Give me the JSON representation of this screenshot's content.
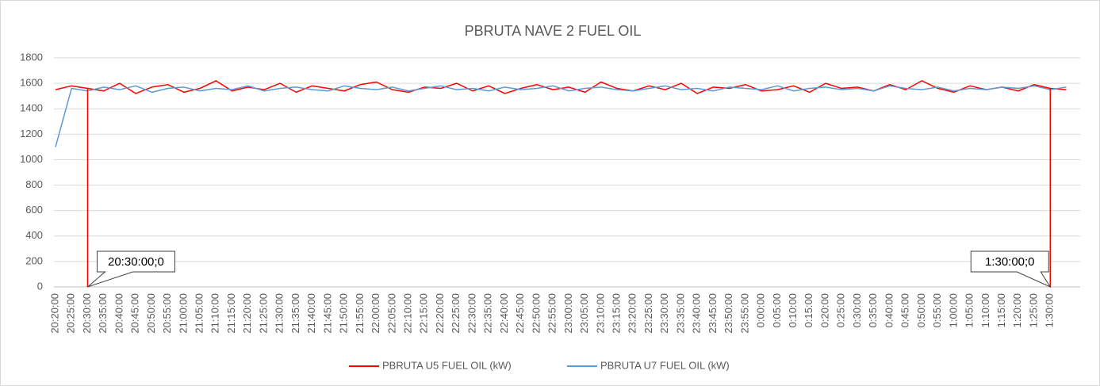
{
  "chart_data": {
    "type": "line",
    "title": "PBRUTA NAVE 2 FUEL OIL",
    "categories": [
      "20:20:00",
      "20:25:00",
      "20:30:00",
      "20:35:00",
      "20:40:00",
      "20:45:00",
      "20:50:00",
      "20:55:00",
      "21:00:00",
      "21:05:00",
      "21:10:00",
      "21:15:00",
      "21:20:00",
      "21:25:00",
      "21:30:00",
      "21:35:00",
      "21:40:00",
      "21:45:00",
      "21:50:00",
      "21:55:00",
      "22:00:00",
      "22:05:00",
      "22:10:00",
      "22:15:00",
      "22:20:00",
      "22:25:00",
      "22:30:00",
      "22:35:00",
      "22:40:00",
      "22:45:00",
      "22:50:00",
      "22:55:00",
      "23:00:00",
      "23:05:00",
      "23:10:00",
      "23:15:00",
      "23:20:00",
      "23:25:00",
      "23:30:00",
      "23:35:00",
      "23:40:00",
      "23:45:00",
      "23:50:00",
      "23:55:00",
      "0:00:00",
      "0:05:00",
      "0:10:00",
      "0:15:00",
      "0:20:00",
      "0:25:00",
      "0:30:00",
      "0:35:00",
      "0:40:00",
      "0:45:00",
      "0:50:00",
      "0:55:00",
      "1:00:00",
      "1:05:00",
      "1:10:00",
      "1:15:00",
      "1:20:00",
      "1:25:00",
      "1:30:00",
      null
    ],
    "series": [
      {
        "name": "PBRUTA U5 FUEL OIL (kW)",
        "color": "#ff0000",
        "values": [
          1550,
          1580,
          1560,
          1540,
          1600,
          1520,
          1570,
          1590,
          1530,
          1560,
          1620,
          1540,
          1570,
          1550,
          1600,
          1530,
          1580,
          1560,
          1540,
          1590,
          1610,
          1550,
          1530,
          1570,
          1560,
          1600,
          1540,
          1580,
          1520,
          1560,
          1590,
          1550,
          1570,
          1530,
          1610,
          1560,
          1540,
          1580,
          1550,
          1600,
          1520,
          1570,
          1560,
          1590,
          1540,
          1550,
          1580,
          1530,
          1600,
          1560,
          1570,
          1540,
          1590,
          1550,
          1620,
          1560,
          1530,
          1580,
          1550,
          1570,
          1540,
          1590,
          1560,
          1550
        ]
      },
      {
        "name": "PBRUTA U7 FUEL OIL (kW)",
        "color": "#5b9bd5",
        "values": [
          1100,
          1560,
          1540,
          1570,
          1550,
          1580,
          1530,
          1560,
          1570,
          1540,
          1560,
          1550,
          1580,
          1540,
          1560,
          1570,
          1550,
          1540,
          1580,
          1560,
          1550,
          1570,
          1540,
          1560,
          1580,
          1550,
          1560,
          1540,
          1570,
          1550,
          1560,
          1580,
          1540,
          1560,
          1570,
          1550,
          1540,
          1560,
          1580,
          1550,
          1560,
          1540,
          1570,
          1560,
          1550,
          1580,
          1540,
          1560,
          1570,
          1550,
          1560,
          1540,
          1580,
          1560,
          1550,
          1570,
          1540,
          1560,
          1550,
          1570,
          1560,
          1580,
          1550,
          1570
        ]
      }
    ],
    "annotations": [
      {
        "label": "20:30:00;0",
        "x": "20:30:00",
        "y": 0
      },
      {
        "label": "1:30:00;0",
        "x": "1:30:00",
        "y": 0
      }
    ],
    "ylim": [
      0,
      1800
    ],
    "yticks": [
      0,
      200,
      400,
      600,
      800,
      1000,
      1200,
      1400,
      1600,
      1800
    ],
    "grid": true,
    "legend": "bottom"
  }
}
